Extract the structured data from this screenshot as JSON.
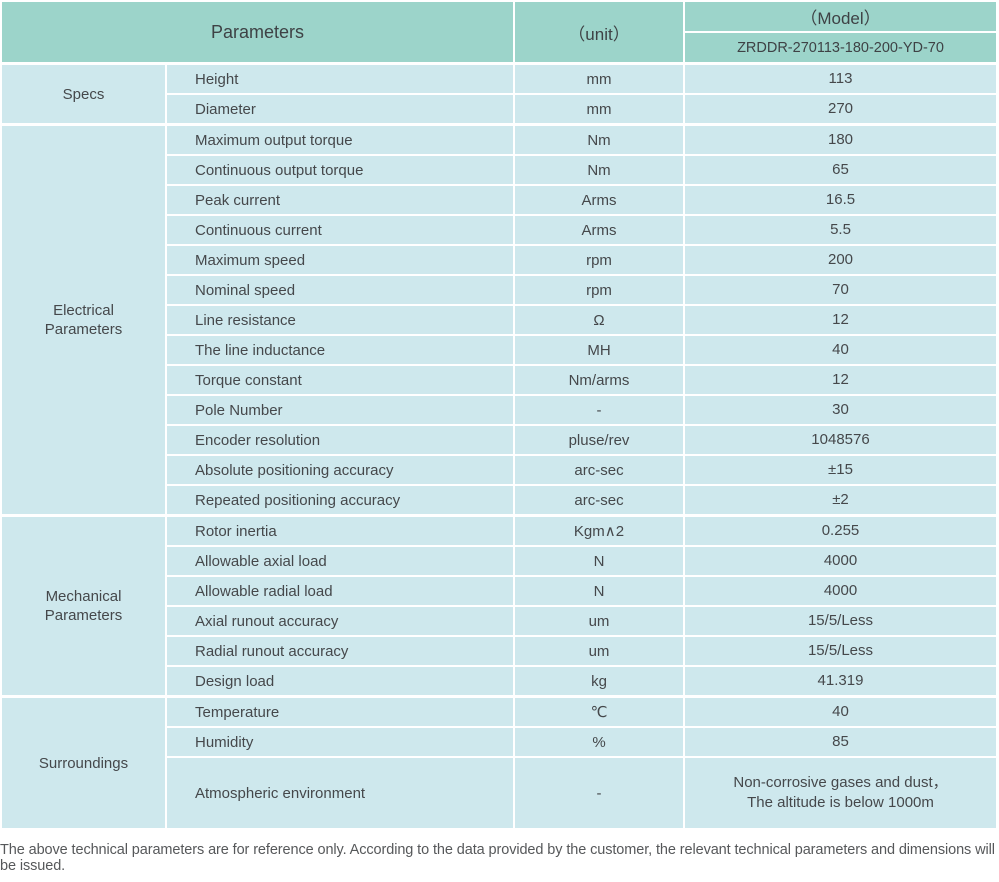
{
  "colors": {
    "header_bg": "#9cd4ca",
    "cell_bg": "#cee8ed",
    "text": "#45484b",
    "note_text": "#56585a",
    "background": "#ffffff"
  },
  "header": {
    "parameters_label": "Parameters",
    "unit_label": "（unit）",
    "model_label": "（Model）",
    "model_number": "ZRDDR-270113-180-200-YD-70"
  },
  "sections": [
    {
      "label": "Specs",
      "rows": [
        {
          "param": "Height",
          "unit": "mm",
          "value": "113"
        },
        {
          "param": "Diameter",
          "unit": "mm",
          "value": "270"
        }
      ]
    },
    {
      "label": "Electrical Parameters",
      "rows": [
        {
          "param": "Maximum output torque",
          "unit": "Nm",
          "value": "180"
        },
        {
          "param": "Continuous output torque",
          "unit": "Nm",
          "value": "65"
        },
        {
          "param": "Peak current",
          "unit": "Arms",
          "value": "16.5"
        },
        {
          "param": "Continuous current",
          "unit": "Arms",
          "value": "5.5"
        },
        {
          "param": "Maximum speed",
          "unit": "rpm",
          "value": "200"
        },
        {
          "param": "Nominal speed",
          "unit": "rpm",
          "value": "70"
        },
        {
          "param": "Line resistance",
          "unit": "Ω",
          "value": "12"
        },
        {
          "param": "The line inductance",
          "unit": "MH",
          "value": "40"
        },
        {
          "param": "Torque constant",
          "unit": "Nm/arms",
          "value": "12"
        },
        {
          "param": "Pole Number",
          "unit": "-",
          "value": "30"
        },
        {
          "param": "Encoder resolution",
          "unit": "pluse/rev",
          "value": "1048576"
        },
        {
          "param": "Absolute positioning accuracy",
          "unit": "arc-sec",
          "value": "±15"
        },
        {
          "param": "Repeated positioning accuracy",
          "unit": "arc-sec",
          "value": "±2"
        }
      ]
    },
    {
      "label": "Mechanical Parameters",
      "rows": [
        {
          "param": "Rotor inertia",
          "unit": "Kgm∧2",
          "value": "0.255"
        },
        {
          "param": "Allowable axial load",
          "unit": "N",
          "value": "4000"
        },
        {
          "param": "Allowable radial load",
          "unit": "N",
          "value": "4000"
        },
        {
          "param": "Axial runout accuracy",
          "unit": "um",
          "value": "15/5/Less"
        },
        {
          "param": "Radial runout accuracy",
          "unit": "um",
          "value": "15/5/Less"
        },
        {
          "param": "Design load",
          "unit": "kg",
          "value": "41.319"
        }
      ]
    },
    {
      "label": "Surroundings",
      "rows": [
        {
          "param": "Temperature",
          "unit": "℃",
          "value": "40"
        },
        {
          "param": "Humidity",
          "unit": "%",
          "value": "85"
        },
        {
          "param": "Atmospheric environment",
          "unit": "-",
          "value": "Non-corrosive gases and dust，\nThe altitude is below 1000m"
        }
      ]
    }
  ],
  "footer": {
    "note": "The above technical parameters are for reference only. According to the data provided by the customer, the relevant technical parameters and dimensions will be issued."
  }
}
